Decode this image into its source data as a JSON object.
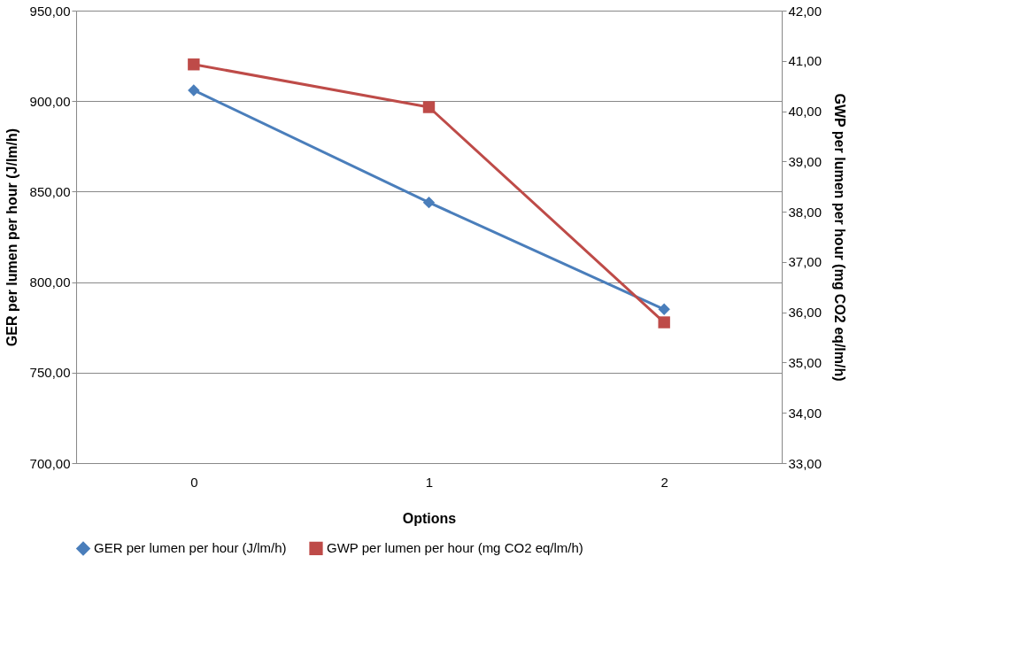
{
  "chart_data": {
    "type": "line",
    "categories": [
      "0",
      "1",
      "2"
    ],
    "xlabel": "Options",
    "ylabel": "GER per lumen per hour (J/lm/h)",
    "y2label": "GWP per lumen per hour (mg CO2 eq/lm/h)",
    "series": [
      {
        "name": "GER per lumen per hour (J/lm/h)",
        "color": "#4a7ebb",
        "marker": "diamond",
        "values": [
          906,
          844,
          785
        ]
      },
      {
        "name": "GWP per lumen per hour (mg CO2 eq/lm/h)",
        "color": "#be4b48",
        "marker": "square",
        "axis": "y2",
        "values": [
          40.93,
          40.08,
          35.8
        ]
      }
    ],
    "ylim": [
      700,
      950
    ],
    "yticks": [
      {
        "value": 700,
        "label": "700,00"
      },
      {
        "value": 750,
        "label": "750,00"
      },
      {
        "value": 800,
        "label": "800,00"
      },
      {
        "value": 850,
        "label": "850,00"
      },
      {
        "value": 900,
        "label": "900,00"
      },
      {
        "value": 950,
        "label": "950,00"
      }
    ],
    "y2lim": [
      33,
      42
    ],
    "y2ticks": [
      {
        "value": 33,
        "label": "33,00"
      },
      {
        "value": 34,
        "label": "34,00"
      },
      {
        "value": 35,
        "label": "35,00"
      },
      {
        "value": 36,
        "label": "36,00"
      },
      {
        "value": 37,
        "label": "37,00"
      },
      {
        "value": 38,
        "label": "38,00"
      },
      {
        "value": 39,
        "label": "39,00"
      },
      {
        "value": 40,
        "label": "40,00"
      },
      {
        "value": 41,
        "label": "41,00"
      },
      {
        "value": 42,
        "label": "42,00"
      }
    ],
    "grid": "y",
    "legend": "bottom",
    "line_style": "solid"
  }
}
